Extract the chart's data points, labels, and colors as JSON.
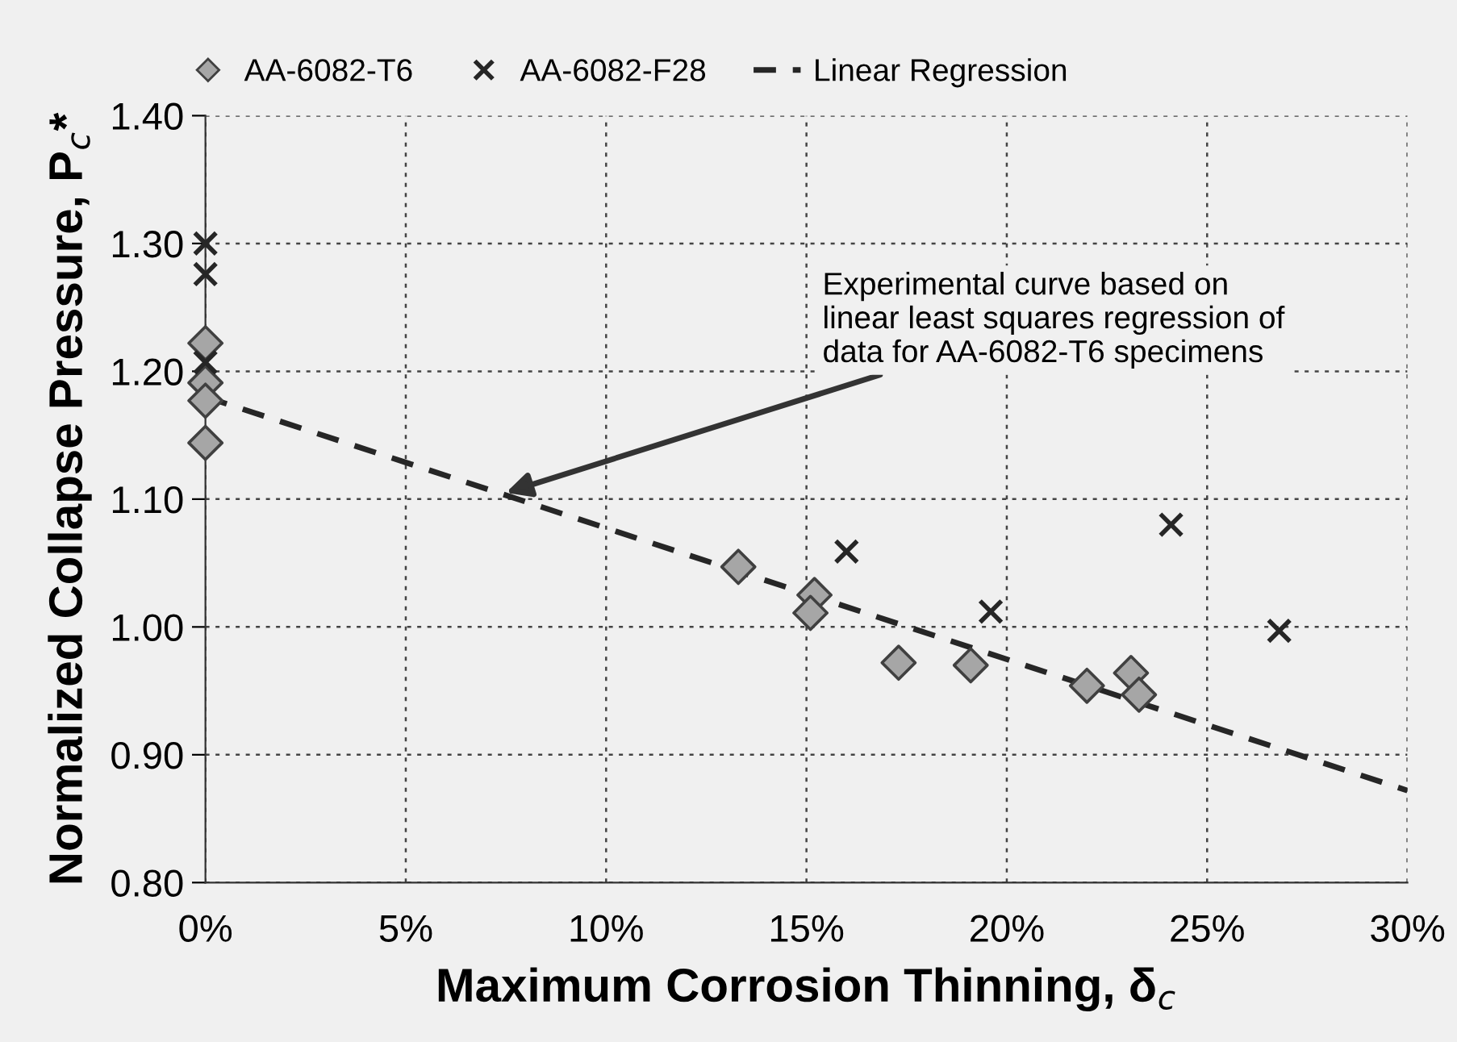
{
  "chart_data": {
    "type": "scatter",
    "xlabel": "Maximum Corrosion Thinning, δ$_{c}$",
    "ylabel": "Normalized Collapse Pressure, P$_{c}$*",
    "xlim": [
      0,
      30
    ],
    "ylim": [
      0.8,
      1.4
    ],
    "xticks": [
      {
        "value": 0,
        "label": "0%"
      },
      {
        "value": 5,
        "label": "5%"
      },
      {
        "value": 10,
        "label": "10%"
      },
      {
        "value": 15,
        "label": "15%"
      },
      {
        "value": 20,
        "label": "20%"
      },
      {
        "value": 25,
        "label": "25%"
      },
      {
        "value": 30,
        "label": "30%"
      }
    ],
    "yticks": [
      {
        "value": 0.8,
        "label": "0.80"
      },
      {
        "value": 0.9,
        "label": "0.90"
      },
      {
        "value": 1.0,
        "label": "1.00"
      },
      {
        "value": 1.1,
        "label": "1.10"
      },
      {
        "value": 1.2,
        "label": "1.20"
      },
      {
        "value": 1.3,
        "label": "1.30"
      },
      {
        "value": 1.4,
        "label": "1.40"
      }
    ],
    "grid": true,
    "legend": "top",
    "series": [
      {
        "name": "AA-6082-T6",
        "marker": "diamond",
        "color": "#a6a6a6",
        "x": [
          0,
          0,
          0,
          0,
          13.3,
          15.2,
          15.1,
          17.3,
          19.1,
          22.0,
          23.1,
          23.3
        ],
        "values": [
          1.222,
          1.191,
          1.177,
          1.144,
          1.047,
          1.025,
          1.011,
          0.972,
          0.97,
          0.954,
          0.964,
          0.947
        ]
      },
      {
        "name": "AA-6082-F28",
        "marker": "cross",
        "color": "#262626",
        "x": [
          0,
          0,
          0,
          16.0,
          19.6,
          24.1,
          26.8
        ],
        "values": [
          1.3,
          1.276,
          1.207,
          1.059,
          1.012,
          1.08,
          0.997
        ]
      },
      {
        "name": "Linear Regression",
        "type": "line",
        "marker": "none",
        "line_style": "dashed",
        "color": "#262626",
        "x": [
          0,
          30
        ],
        "values": [
          1.18,
          0.872
        ]
      }
    ],
    "annotations": [
      {
        "text": "Experimental curve based on\nlinear least squares regression of\ndata for AA-6082-T6 specimens",
        "x": 7.5,
        "y": 1.105
      }
    ]
  }
}
